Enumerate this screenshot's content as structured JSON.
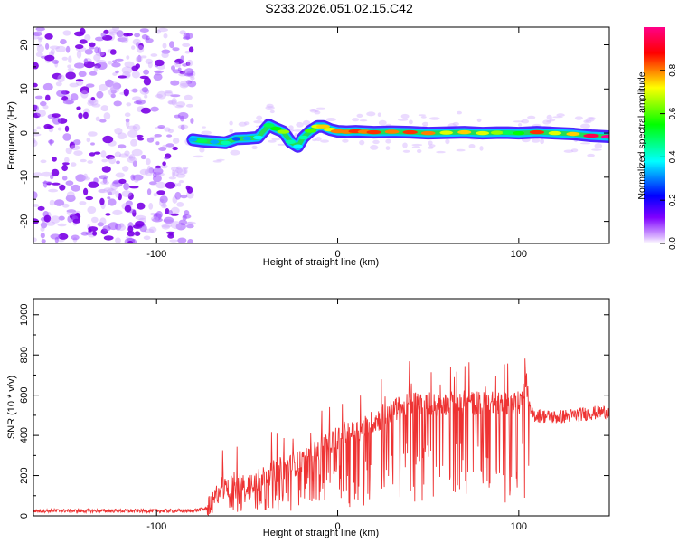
{
  "title": "S233.2026.051.02.15.C42",
  "chart_data": [
    {
      "type": "heatmap",
      "title": "S233.2026.051.02.15.C42",
      "xlabel": "Height of straight line (km)",
      "ylabel": "Frequency (Hz)",
      "xlim": [
        -168,
        150
      ],
      "ylim": [
        -25,
        24
      ],
      "xticks": [
        -100,
        0,
        100
      ],
      "yticks": [
        -20,
        -10,
        0,
        10,
        20
      ],
      "colorbar_label": "Normalized spectral amplitude",
      "colorbar_ticks": [
        0.0,
        0.2,
        0.4,
        0.6,
        0.8
      ],
      "colorbar_range": [
        0,
        1
      ],
      "noise_region_x": [
        -168,
        -80
      ],
      "signal_track": {
        "x": [
          -80,
          -75,
          -68,
          -62,
          -56,
          -50,
          -44,
          -38,
          -34,
          -30,
          -26,
          -22,
          -19,
          -15,
          -11,
          -8,
          -4,
          0,
          5,
          10,
          15,
          20,
          30,
          40,
          50,
          60,
          70,
          80,
          88,
          94,
          100,
          110,
          120,
          130,
          140,
          150
        ],
        "freq": [
          -1.5,
          -1.8,
          -2.0,
          -2.2,
          -1.3,
          -1.2,
          -1.0,
          1.8,
          1.0,
          0.3,
          -2.0,
          -3.0,
          -1.0,
          0.5,
          1.5,
          1.5,
          0.8,
          0.4,
          0.3,
          0.4,
          0.3,
          0.2,
          0.3,
          0.2,
          0.0,
          0.1,
          0.2,
          0.0,
          0.1,
          0.1,
          0.0,
          0.2,
          0.0,
          -0.2,
          -0.6,
          -0.8
        ],
        "amplitude": [
          0.35,
          0.5,
          0.35,
          0.45,
          0.3,
          0.35,
          0.4,
          0.5,
          0.55,
          0.65,
          0.45,
          0.4,
          0.45,
          0.6,
          0.7,
          0.75,
          0.7,
          0.8,
          0.8,
          0.85,
          0.8,
          0.85,
          0.8,
          0.85,
          0.8,
          0.7,
          0.75,
          0.7,
          0.65,
          0.5,
          0.55,
          0.85,
          0.7,
          0.75,
          0.95,
          1.0
        ]
      },
      "colors": {
        "noise": "#8a2be2",
        "track": [
          "#3f00ff",
          "#00e5ff",
          "#22dd22",
          "#ffee00",
          "#ff2200"
        ]
      }
    },
    {
      "type": "line",
      "xlabel": "Height of straight line (km)",
      "ylabel": "SNR (10 * v/v)",
      "xlim": [
        -168,
        150
      ],
      "ylim": [
        0,
        1080
      ],
      "xticks": [
        -100,
        0,
        100
      ],
      "yticks": [
        0,
        200,
        400,
        600,
        800,
        1000
      ],
      "series": [
        {
          "name": "SNR",
          "color": "#ee3333",
          "x": [
            -168,
            -140,
            -110,
            -80,
            -70,
            -65,
            -60,
            -55,
            -50,
            -45,
            -40,
            -35,
            -30,
            -25,
            -20,
            -15,
            -10,
            -5,
            0,
            5,
            10,
            15,
            20,
            25,
            30,
            35,
            40,
            45,
            50,
            55,
            60,
            65,
            70,
            75,
            80,
            85,
            90,
            95,
            100,
            102,
            104,
            106,
            108,
            110,
            120,
            130,
            140,
            150
          ],
          "values": [
            25,
            25,
            25,
            25,
            40,
            140,
            150,
            140,
            160,
            180,
            200,
            220,
            240,
            250,
            270,
            300,
            330,
            360,
            390,
            400,
            420,
            440,
            470,
            490,
            520,
            540,
            560,
            560,
            560,
            550,
            560,
            560,
            560,
            560,
            560,
            560,
            560,
            560,
            560,
            600,
            700,
            520,
            500,
            500,
            490,
            500,
            510,
            520
          ]
        }
      ]
    }
  ]
}
